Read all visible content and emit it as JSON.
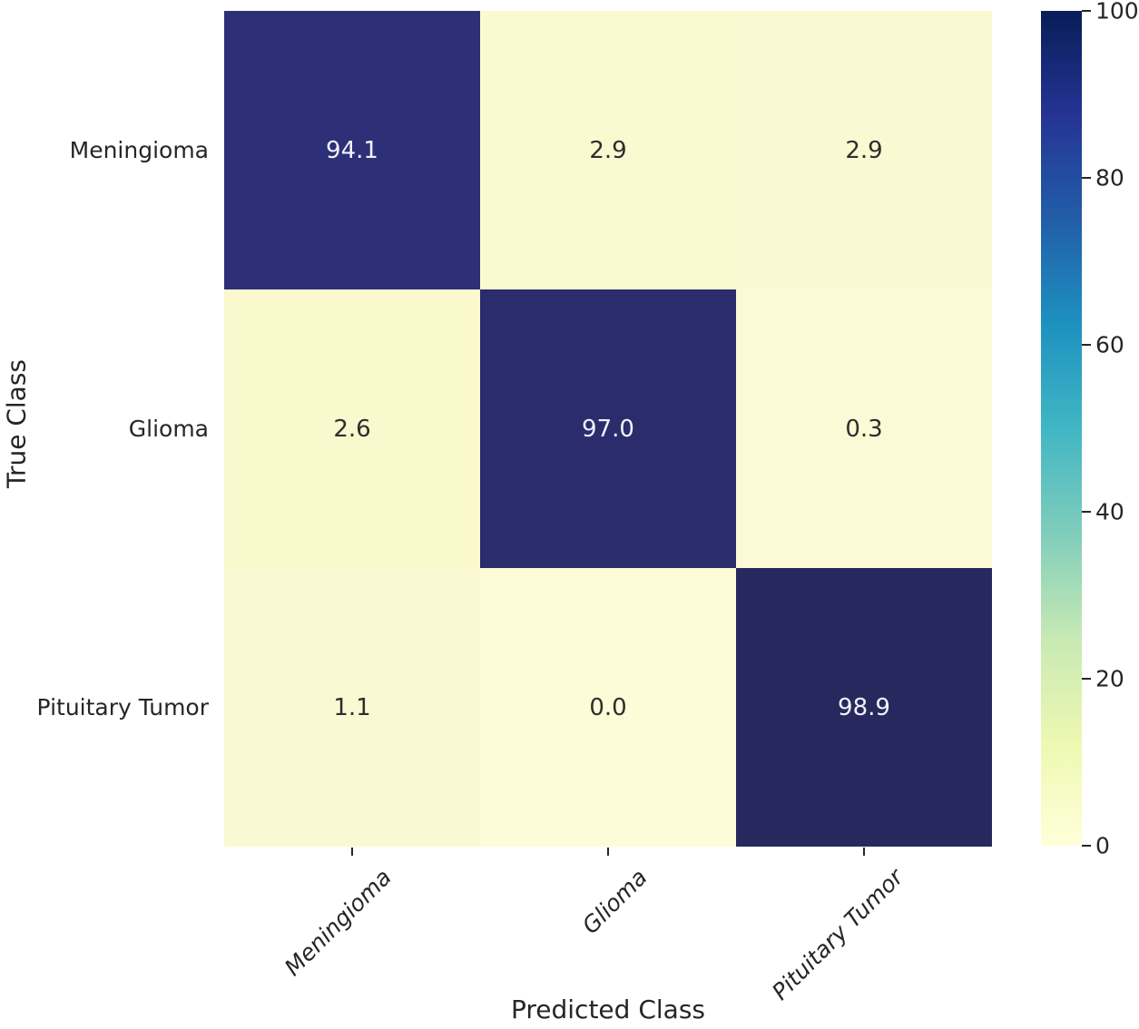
{
  "figure": {
    "xlabel": "Predicted Class",
    "ylabel": "True Class"
  },
  "chart_data": {
    "type": "heatmap",
    "title": "",
    "xlabel": "Predicted Class",
    "ylabel": "True Class",
    "x_categories": [
      "Meningioma",
      "Glioma",
      "Pituitary Tumor"
    ],
    "y_categories": [
      "Meningioma",
      "Glioma",
      "Pituitary Tumor"
    ],
    "matrix": [
      [
        94.1,
        2.9,
        2.9
      ],
      [
        2.6,
        97.0,
        0.3
      ],
      [
        1.1,
        0.0,
        98.9
      ]
    ],
    "cell_labels": [
      [
        "94.1",
        "2.9",
        "2.9"
      ],
      [
        "2.6",
        "97.0",
        "0.3"
      ],
      [
        "1.1",
        "0.0",
        "98.9"
      ]
    ],
    "cell_colors": [
      [
        "#2d2f77",
        "#fbf9d0",
        "#fbf9d1"
      ],
      [
        "#faf8cd",
        "#2a2c6c",
        "#fcfad6"
      ],
      [
        "#fbf9d3",
        "#fdfcd9",
        "#27295e"
      ]
    ],
    "value_range": [
      0,
      100
    ],
    "grid": false,
    "colorbar": {
      "min": 0,
      "max": 100,
      "ticks": [
        "100",
        "80",
        "60",
        "40",
        "20",
        "0"
      ],
      "colormap": "YlGnBu",
      "gradient_stops_bottom_to_top": [
        "#ffffd9",
        "#edf8b1",
        "#c7e9b4",
        "#7fcdbb",
        "#41b6c4",
        "#1d91c0",
        "#225ea8",
        "#253494",
        "#081d58"
      ],
      "position": "right"
    }
  },
  "colors": {
    "background": "#ffffff",
    "axis_text": "#262626",
    "tick_mark": "#262626",
    "annotation_on_dark": "#f2f2f7",
    "annotation_on_light": "#2e2e2e"
  }
}
